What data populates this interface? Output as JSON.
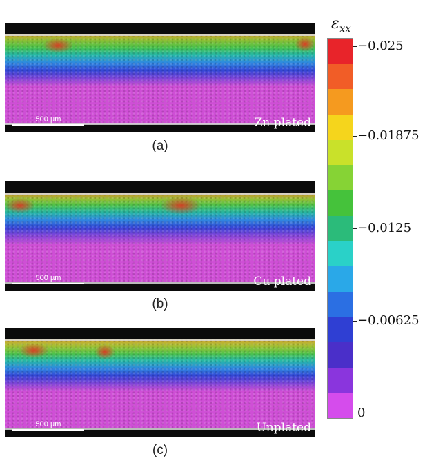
{
  "panels": [
    {
      "label": "Zn plated",
      "scalebar": "500 µm",
      "caption": "(a)"
    },
    {
      "label": "Cu plated",
      "scalebar": "500 µm",
      "caption": "(b)"
    },
    {
      "label": "Unplated",
      "scalebar": "500 µm",
      "caption": "(c)"
    }
  ],
  "colorbar": {
    "title_symbol": "ε",
    "title_subscript": "xx",
    "tick_labels": [
      "−0.025",
      "−0.01875",
      "−0.0125",
      "−0.00625",
      "0"
    ],
    "colors": [
      "#e8242a",
      "#f15d27",
      "#f59a1f",
      "#f5d51c",
      "#c9e12a",
      "#86d335",
      "#45c23b",
      "#2bbb7a",
      "#2ad1c8",
      "#2aa8e8",
      "#2b6fe3",
      "#2f3fd3",
      "#4a2fc9",
      "#8a35dd",
      "#d54cec"
    ]
  }
}
